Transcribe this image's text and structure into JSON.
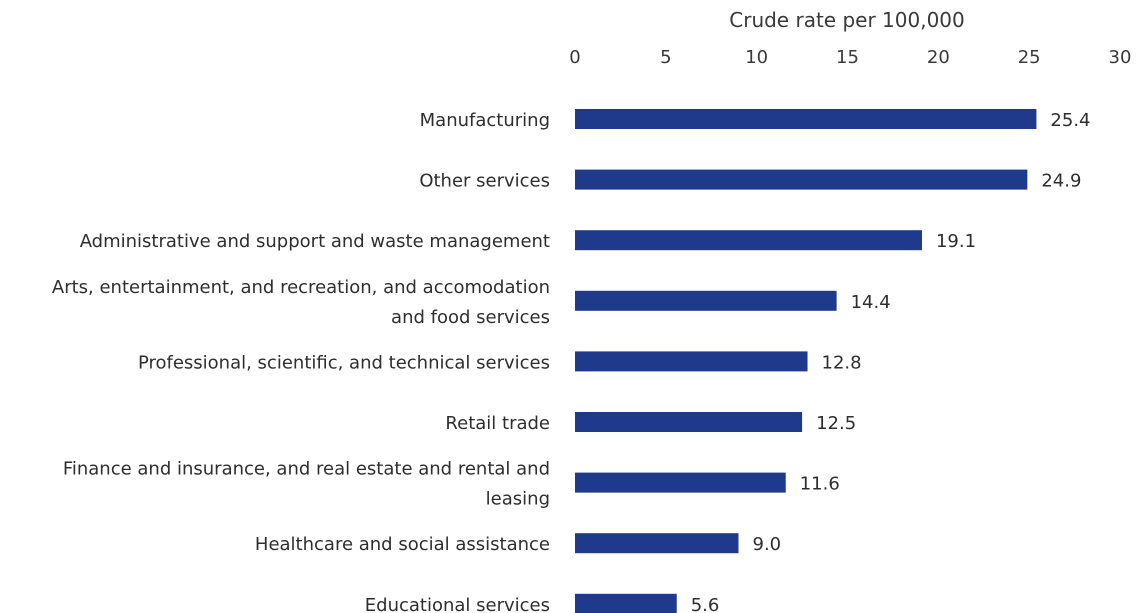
{
  "colors": {
    "bar": "#1f3a8a",
    "text": "#2e2e2e",
    "background": "#ffffff"
  },
  "chart_data": {
    "type": "bar",
    "orientation": "horizontal",
    "title": "",
    "xlabel": "Crude rate per 100,000",
    "ylabel": "",
    "xlim": [
      0,
      30
    ],
    "xticks": [
      0,
      5,
      10,
      15,
      20,
      25,
      30
    ],
    "x_axis_position": "top",
    "grid": false,
    "legend": "none",
    "categories": [
      [
        "Manufacturing"
      ],
      [
        "Other services"
      ],
      [
        "Administrative and support and waste management"
      ],
      [
        "Arts, entertainment, and recreation, and accomodation",
        "and food services"
      ],
      [
        "Professional, scientific, and technical services"
      ],
      [
        "Retail trade"
      ],
      [
        "Finance and insurance, and real estate and rental and",
        "leasing"
      ],
      [
        "Healthcare and social assistance"
      ],
      [
        "Educational services"
      ]
    ],
    "values": [
      25.4,
      24.9,
      19.1,
      14.4,
      12.8,
      12.5,
      11.6,
      9.0,
      5.6
    ],
    "value_labels": [
      "25.4",
      "24.9",
      "19.1",
      "14.4",
      "12.8",
      "12.5",
      "11.6",
      "9.0",
      "5.6"
    ]
  }
}
